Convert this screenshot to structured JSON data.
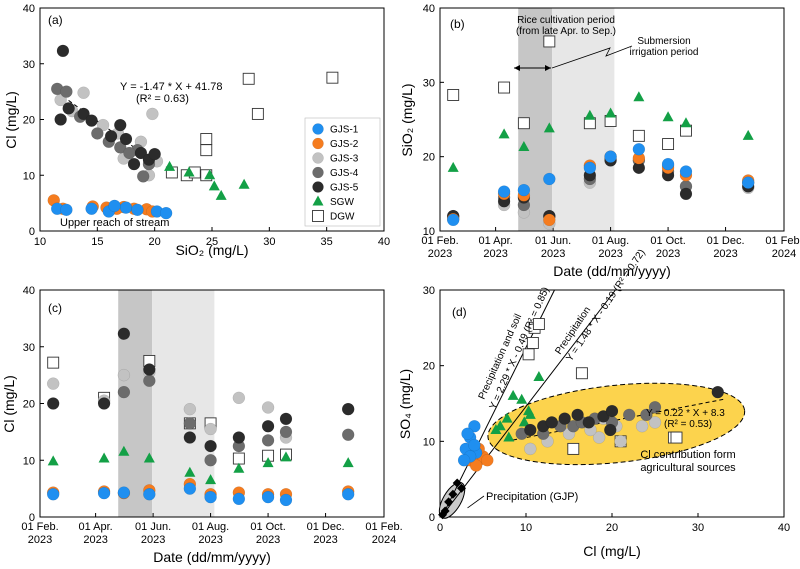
{
  "colors": {
    "GJS-1": "#1f8ff0",
    "GJS-2": "#f57c1f",
    "GJS-3": "#c2c2c2",
    "GJS-4": "#6c6c6c",
    "GJS-5": "#2b2b2b",
    "SGW": "#13a046",
    "DGW": "#ffffff",
    "ellipse_fill": "#fcd34d",
    "rice_band": "#c6c6c6",
    "submersion_band": "#e7e7e7"
  },
  "legend": {
    "entries": [
      "GJS-1",
      "GJS-2",
      "GJS-3",
      "GJS-4",
      "GJS-5",
      "SGW",
      "DGW"
    ]
  },
  "chart_data": [
    {
      "panel": "(a)",
      "type": "scatter",
      "xlabel": "SiO₂ (mg/L)",
      "ylabel": "Cl (mg/L)",
      "xlim": [
        10,
        40
      ],
      "ylim": [
        0,
        40
      ],
      "xticks": [
        "10",
        "15",
        "20",
        "25",
        "30",
        "35",
        "40"
      ],
      "yticks": [
        "0",
        "10",
        "20",
        "30",
        "40"
      ],
      "equation": "Y = -1.47 * X + 41.78",
      "r2": "(R² = 0.63)",
      "note": "Upper reach of stream",
      "series": [
        {
          "name": "GJS-1",
          "points": [
            [
              11.5,
              4
            ],
            [
              12.3,
              3.8
            ],
            [
              14.5,
              4
            ],
            [
              16.0,
              3.5
            ],
            [
              17.5,
              4.2
            ],
            [
              18.5,
              3.8
            ],
            [
              20.2,
              3.5
            ],
            [
              21.0,
              3.2
            ],
            [
              16.5,
              4.5
            ]
          ]
        },
        {
          "name": "GJS-2",
          "points": [
            [
              11.2,
              5.5
            ],
            [
              12.0,
              4.0
            ],
            [
              14.6,
              4.4
            ],
            [
              15.8,
              4.2
            ],
            [
              17.3,
              4.3
            ],
            [
              18.2,
              4.0
            ],
            [
              19.3,
              3.9
            ],
            [
              19.8,
              3.5
            ],
            [
              16.7,
              4.0
            ]
          ]
        },
        {
          "name": "GJS-3",
          "points": [
            [
              11.8,
              23.5
            ],
            [
              12.8,
              21.5
            ],
            [
              13.8,
              24.8
            ],
            [
              15.5,
              19.0
            ],
            [
              16.8,
              17.5
            ],
            [
              18.8,
              16.0
            ],
            [
              19.8,
              21.0
            ],
            [
              19.5,
              10.0
            ],
            [
              20.2,
              12.5
            ],
            [
              17.3,
              13.0
            ]
          ]
        },
        {
          "name": "GJS-4",
          "points": [
            [
              11.5,
              25.5
            ],
            [
              12.3,
              25.0
            ],
            [
              13.5,
              20.5
            ],
            [
              15.0,
              17.5
            ],
            [
              16.0,
              16.0
            ],
            [
              17.0,
              15.0
            ],
            [
              18.5,
              14.5
            ],
            [
              19.5,
              12.0
            ],
            [
              19.0,
              9.8
            ],
            [
              17.8,
              14.0
            ]
          ]
        },
        {
          "name": "GJS-5",
          "points": [
            [
              12.0,
              32.3
            ],
            [
              11.8,
              20.0
            ],
            [
              12.5,
              22.0
            ],
            [
              13.8,
              21.0
            ],
            [
              14.5,
              19.8
            ],
            [
              16.2,
              17.0
            ],
            [
              17.0,
              19.0
            ],
            [
              17.5,
              16.5
            ],
            [
              18.8,
              14.0
            ],
            [
              19.5,
              12.8
            ],
            [
              20.0,
              13.8
            ],
            [
              18.2,
              12.0
            ]
          ]
        },
        {
          "name": "SGW",
          "points": [
            [
              21.3,
              11.5
            ],
            [
              23.0,
              10.5
            ],
            [
              24.8,
              10.0
            ],
            [
              25.2,
              8.0
            ],
            [
              25.8,
              6.3
            ],
            [
              27.8,
              8.3
            ]
          ]
        },
        {
          "name": "DGW",
          "points": [
            [
              21.5,
              10.5
            ],
            [
              22.8,
              10.0
            ],
            [
              23.5,
              10.5
            ],
            [
              24.5,
              16.5
            ],
            [
              24.5,
              14.5
            ],
            [
              28.2,
              27.3
            ],
            [
              29.0,
              21.0
            ],
            [
              35.5,
              27.5
            ],
            [
              24.5,
              10.0
            ]
          ]
        }
      ]
    },
    {
      "panel": "(b)",
      "type": "scatter",
      "xlabel": "Date (dd/mm/yyyy)",
      "ylabel": "SiO₂ (mg/L)",
      "ylim": [
        10,
        40
      ],
      "xticks": [
        "01 Feb. 2023",
        "01 Apr. 2023",
        "01 Jun. 2023",
        "01 Aug. 2023",
        "01 Oct. 2023",
        "01 Dec. 2023",
        "01 Feb. 2024"
      ],
      "yticks": [
        "10",
        "20",
        "30",
        "40"
      ],
      "annotations": {
        "rice": "Rice cultivation period",
        "rice_sub": "(from late Apr. to Sep.)",
        "submersion": "Submersion",
        "submersion_sub": "irrigation period"
      },
      "sampling_dates": [
        "2023-02-15",
        "2023-04-10",
        "2023-05-01",
        "2023-05-28",
        "2023-07-10",
        "2023-08-01",
        "2023-08-31",
        "2023-10-01",
        "2023-10-20",
        "2023-12-25"
      ],
      "series": [
        {
          "name": "GJS-1",
          "values": [
            11.5,
            15.3,
            15.5,
            17.0,
            18.5,
            20.0,
            21.0,
            19.0,
            18.0,
            16.5
          ]
        },
        {
          "name": "GJS-2",
          "values": [
            11.6,
            15.0,
            14.8,
            11.5,
            18.8,
            20.0,
            19.8,
            18.5,
            17.5,
            16.8
          ]
        },
        {
          "name": "GJS-3",
          "values": [
            11.8,
            13.5,
            12.5,
            11.0,
            16.5,
            19.5,
            19.5,
            18.8,
            16.0,
            15.8
          ]
        },
        {
          "name": "GJS-4",
          "values": [
            12.0,
            14.5,
            13.5,
            12.0,
            17.0,
            19.8,
            19.5,
            18.0,
            16.0,
            16.5
          ]
        },
        {
          "name": "GJS-5",
          "values": [
            12.0,
            14.0,
            14.5,
            12.0,
            17.5,
            19.5,
            18.5,
            17.5,
            15.0,
            16.0
          ]
        },
        {
          "name": "SGW",
          "values": [
            18.5,
            23.0,
            21.3,
            23.8,
            25.5,
            25.8,
            28.0,
            25.3,
            24.5,
            22.8
          ]
        },
        {
          "name": "DGW",
          "values": [
            28.3,
            29.3,
            24.5,
            35.5,
            24.5,
            24.8,
            22.8,
            21.7,
            23.5,
            null
          ]
        }
      ]
    },
    {
      "panel": "(c)",
      "type": "scatter",
      "xlabel": "Date (dd/mm/yyyy)",
      "ylabel": "Cl (mg/L)",
      "ylim": [
        0,
        40
      ],
      "xticks": [
        "01 Feb. 2023",
        "01 Apr. 2023",
        "01 Jun. 2023",
        "01 Aug. 2023",
        "01 Oct. 2023",
        "01 Dec. 2023",
        "01 Feb. 2024"
      ],
      "yticks": [
        "0",
        "10",
        "20",
        "30",
        "40"
      ],
      "sampling_dates": [
        "2023-02-15",
        "2023-04-10",
        "2023-05-01",
        "2023-05-28",
        "2023-07-10",
        "2023-08-01",
        "2023-08-31",
        "2023-10-01",
        "2023-10-20",
        "2023-12-25"
      ],
      "series": [
        {
          "name": "GJS-1",
          "values": [
            4.0,
            4.2,
            4.3,
            4.0,
            5.0,
            3.5,
            3.2,
            3.5,
            3.0,
            4.0
          ]
        },
        {
          "name": "GJS-2",
          "values": [
            4.3,
            4.5,
            4.2,
            4.7,
            5.8,
            4.0,
            4.3,
            4.0,
            4.0,
            4.5
          ]
        },
        {
          "name": "GJS-3",
          "values": [
            23.5,
            20.5,
            25.0,
            25.5,
            19.0,
            15.5,
            21.0,
            19.3,
            14.0,
            19.0
          ]
        },
        {
          "name": "GJS-4",
          "values": [
            null,
            null,
            22.0,
            24.0,
            16.5,
            10.0,
            12.5,
            13.5,
            15.0,
            14.5
          ]
        },
        {
          "name": "GJS-5",
          "values": [
            20.0,
            20.0,
            32.3,
            26.0,
            14.0,
            12.5,
            14.0,
            16.0,
            17.3,
            19.0
          ]
        },
        {
          "name": "SGW",
          "values": [
            9.8,
            10.3,
            11.5,
            10.3,
            7.8,
            6.5,
            8.5,
            9.5,
            10.5,
            9.5
          ]
        },
        {
          "name": "DGW",
          "values": [
            27.2,
            21.0,
            null,
            27.5,
            16.5,
            16.5,
            10.3,
            10.8,
            11.0,
            null
          ]
        }
      ]
    },
    {
      "panel": "(d)",
      "type": "scatter",
      "xlabel": "Cl (mg/L)",
      "ylabel": "SO₄ (mg/L)",
      "xlim": [
        0,
        40
      ],
      "ylim": [
        0,
        30
      ],
      "xticks": [
        "0",
        "10",
        "20",
        "30",
        "40"
      ],
      "yticks": [
        "0",
        "10",
        "20",
        "30"
      ],
      "lines": [
        {
          "label": "Precipitation and soil",
          "equation": "Y = 2.29 * X - 0.49 (R² = 0.85)"
        },
        {
          "label": "Precipitation",
          "equation": "Y = 1.48 * X - 0.19 (R² = 0.72)"
        },
        {
          "label": "",
          "equation": "Y = 0.22 * X + 8.3",
          "r2": "(R² = 0.53)"
        }
      ],
      "notes": {
        "agri": "Cl contribution form",
        "agri_sub": "agricultural sources",
        "gjp": "Precipitation (GJP)"
      },
      "series": [
        {
          "name": "GJP",
          "points": [
            [
              0.3,
              0.3
            ],
            [
              0.6,
              0.8
            ],
            [
              1.0,
              2.0
            ],
            [
              1.5,
              3.0
            ],
            [
              2.0,
              4.5
            ],
            [
              2.5,
              3.8
            ]
          ]
        },
        {
          "name": "GJS-1",
          "points": [
            [
              3.0,
              9.0
            ],
            [
              3.5,
              10.5
            ],
            [
              4.0,
              12.0
            ],
            [
              3.2,
              11.0
            ],
            [
              4.2,
              8.5
            ],
            [
              3.5,
              8.0
            ],
            [
              2.8,
              7.5
            ],
            [
              4.0,
              9.5
            ]
          ]
        },
        {
          "name": "GJS-2",
          "points": [
            [
              3.5,
              7.5
            ],
            [
              4.0,
              8.0
            ],
            [
              4.5,
              7.5
            ],
            [
              5.0,
              8.0
            ],
            [
              4.2,
              6.8
            ],
            [
              3.8,
              8.8
            ],
            [
              4.5,
              9.0
            ],
            [
              5.5,
              7.5
            ]
          ]
        },
        {
          "name": "GJS-3",
          "points": [
            [
              10.5,
              9.0
            ],
            [
              12.5,
              10.0
            ],
            [
              15.0,
              11.0
            ],
            [
              18.5,
              10.5
            ],
            [
              20.5,
              12.0
            ],
            [
              23.5,
              12.0
            ],
            [
              25.0,
              12.5
            ],
            [
              21.0,
              10.0
            ],
            [
              19.0,
              13.0
            ],
            [
              17.5,
              11.5
            ]
          ]
        },
        {
          "name": "GJS-4",
          "points": [
            [
              9.5,
              11.0
            ],
            [
              12.0,
              11.0
            ],
            [
              14.0,
              12.0
            ],
            [
              15.5,
              12.0
            ],
            [
              16.5,
              12.5
            ],
            [
              18.0,
              13.0
            ],
            [
              20.0,
              12.5
            ],
            [
              22.0,
              13.5
            ],
            [
              24.0,
              13.5
            ],
            [
              25.0,
              14.5
            ]
          ]
        },
        {
          "name": "GJS-5",
          "points": [
            [
              10.5,
              11.5
            ],
            [
              12.0,
              12.0
            ],
            [
              13.0,
              12.5
            ],
            [
              14.5,
              13.0
            ],
            [
              16.0,
              13.5
            ],
            [
              17.3,
              12.5
            ],
            [
              19.0,
              13.3
            ],
            [
              20.0,
              14.0
            ],
            [
              32.3,
              16.5
            ],
            [
              19.8,
              11.5
            ]
          ]
        },
        {
          "name": "SGW",
          "points": [
            [
              6.5,
              11.5
            ],
            [
              7.8,
              13.0
            ],
            [
              8.5,
              16.0
            ],
            [
              9.5,
              15.5
            ],
            [
              10.3,
              14.0
            ],
            [
              11.5,
              18.5
            ],
            [
              8.0,
              10.5
            ],
            [
              9.8,
              12.5
            ],
            [
              10.5,
              13.5
            ],
            [
              7.0,
              12.0
            ]
          ]
        },
        {
          "name": "DGW",
          "points": [
            [
              10.3,
              21.5
            ],
            [
              10.8,
              23.0
            ],
            [
              11.0,
              25.0
            ],
            [
              11.5,
              25.5
            ],
            [
              16.5,
              19.0
            ],
            [
              15.5,
              9.0
            ],
            [
              21.0,
              10.0
            ],
            [
              27.2,
              10.5
            ],
            [
              27.5,
              10.5
            ]
          ]
        }
      ]
    }
  ]
}
